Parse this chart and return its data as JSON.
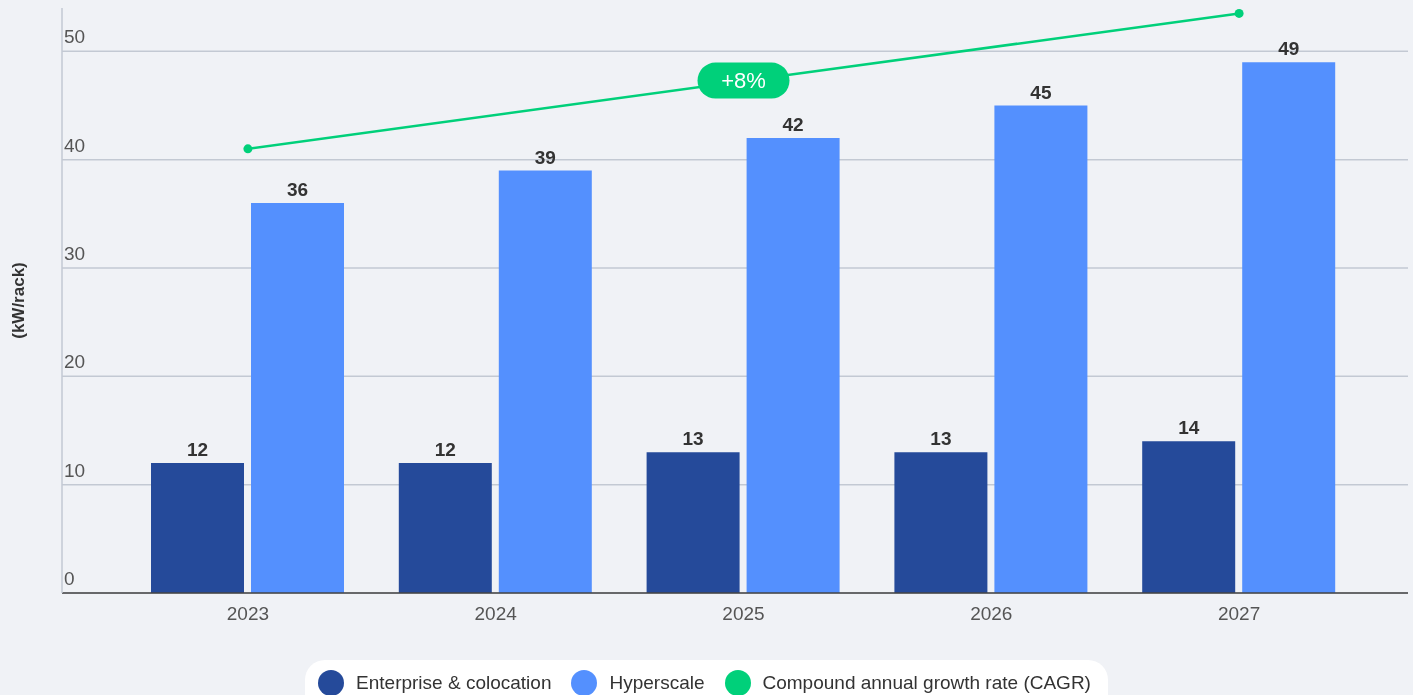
{
  "chart_data": {
    "type": "bar",
    "ylabel": "(kW/rack)",
    "categories": [
      "2023",
      "2024",
      "2025",
      "2026",
      "2027"
    ],
    "series": [
      {
        "name": "Enterprise & colocation",
        "color": "#254a9a",
        "values": [
          12,
          12,
          13,
          13,
          14
        ]
      },
      {
        "name": "Hyperscale",
        "color": "#5490fe",
        "values": [
          36,
          39,
          42,
          45,
          49
        ]
      },
      {
        "name": "Compound annual growth rate (CAGR)",
        "type": "line",
        "color": "#00d07a",
        "values": [
          41,
          null,
          null,
          null,
          53.5
        ],
        "marker": "circle",
        "data_labels": false
      }
    ],
    "ylim": [
      0,
      54
    ],
    "yticks": [
      0,
      10,
      20,
      30,
      40,
      50
    ],
    "grid": "y",
    "legend": "bottom",
    "data_labels": true,
    "annotations": [
      {
        "text": "+8%",
        "x": "2025",
        "y": 47.3
      }
    ]
  }
}
